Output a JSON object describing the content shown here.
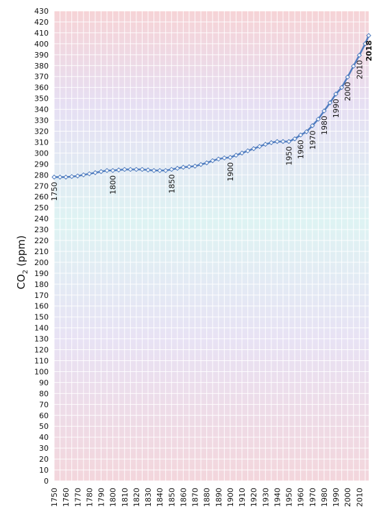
{
  "chart_data": {
    "type": "line",
    "title": "",
    "xlabel": "",
    "ylabel": "CO₂ (ppm)",
    "ylabel_main": "CO",
    "ylabel_sub": "2",
    "ylabel_unit": " (ppm)",
    "ylim": [
      0,
      430
    ],
    "y_ticks": [
      0,
      10,
      20,
      30,
      40,
      50,
      60,
      70,
      80,
      90,
      100,
      110,
      120,
      130,
      140,
      150,
      160,
      170,
      180,
      190,
      200,
      210,
      220,
      230,
      240,
      250,
      260,
      270,
      280,
      290,
      300,
      310,
      320,
      330,
      340,
      350,
      360,
      370,
      380,
      390,
      400,
      410,
      420,
      430
    ],
    "xlim": [
      1750,
      2018
    ],
    "x_ticks": [
      1750,
      1760,
      1770,
      1780,
      1790,
      1800,
      1810,
      1820,
      1830,
      1840,
      1850,
      1860,
      1870,
      1880,
      1890,
      1900,
      1910,
      1920,
      1930,
      1940,
      1950,
      1960,
      1970,
      1980,
      1990,
      2000,
      2010
    ],
    "background_gradient": [
      "#f6d3d6",
      "#e6dff3",
      "#def3f3",
      "#e8e2f4",
      "#f3d6dc"
    ],
    "series_color": "#4f7cbf",
    "series": [
      {
        "x": [
          1750,
          1755,
          1760,
          1765,
          1770,
          1775,
          1780,
          1785,
          1790,
          1795,
          1800,
          1805,
          1810,
          1815,
          1820,
          1825,
          1830,
          1835,
          1840,
          1845,
          1850,
          1855,
          1860,
          1865,
          1870,
          1875,
          1880,
          1885,
          1890,
          1895,
          1900,
          1905,
          1910,
          1915,
          1920,
          1925,
          1930,
          1935,
          1940,
          1945,
          1950,
          1955,
          1960,
          1965,
          1970,
          1975,
          1980,
          1985,
          1990,
          1995,
          2000,
          2005,
          2010,
          2015,
          2018
        ],
        "y": [
          278,
          278,
          278,
          278.5,
          279,
          280,
          281,
          282,
          283,
          284,
          284,
          284.5,
          285,
          285,
          285,
          285,
          284.5,
          284,
          284,
          284,
          285,
          286,
          287,
          287.5,
          288,
          289.5,
          291,
          293,
          294.5,
          295.5,
          296,
          298,
          300,
          302,
          304,
          306,
          308,
          309.5,
          310.5,
          310.5,
          310.5,
          313,
          316.5,
          319.5,
          325,
          331,
          338.5,
          346,
          354,
          360,
          369.5,
          379.5,
          389.5,
          400,
          407.5
        ]
      }
    ],
    "annotations": [
      {
        "label": "1750",
        "x": 1750,
        "y": 278
      },
      {
        "label": "1800",
        "x": 1800,
        "y": 284
      },
      {
        "label": "1850",
        "x": 1850,
        "y": 285
      },
      {
        "label": "1900",
        "x": 1900,
        "y": 296
      },
      {
        "label": "1950",
        "x": 1950,
        "y": 310.5
      },
      {
        "label": "1960",
        "x": 1960,
        "y": 316.5
      },
      {
        "label": "1970",
        "x": 1970,
        "y": 325
      },
      {
        "label": "1980",
        "x": 1980,
        "y": 338.5
      },
      {
        "label": "1990",
        "x": 1990,
        "y": 354
      },
      {
        "label": "2000",
        "x": 2000,
        "y": 369.5
      },
      {
        "label": "2010",
        "x": 2010,
        "y": 389.5
      },
      {
        "label": "2018",
        "x": 2018,
        "y": 407.5,
        "bold": true
      }
    ],
    "grid": true,
    "legend": "none"
  }
}
